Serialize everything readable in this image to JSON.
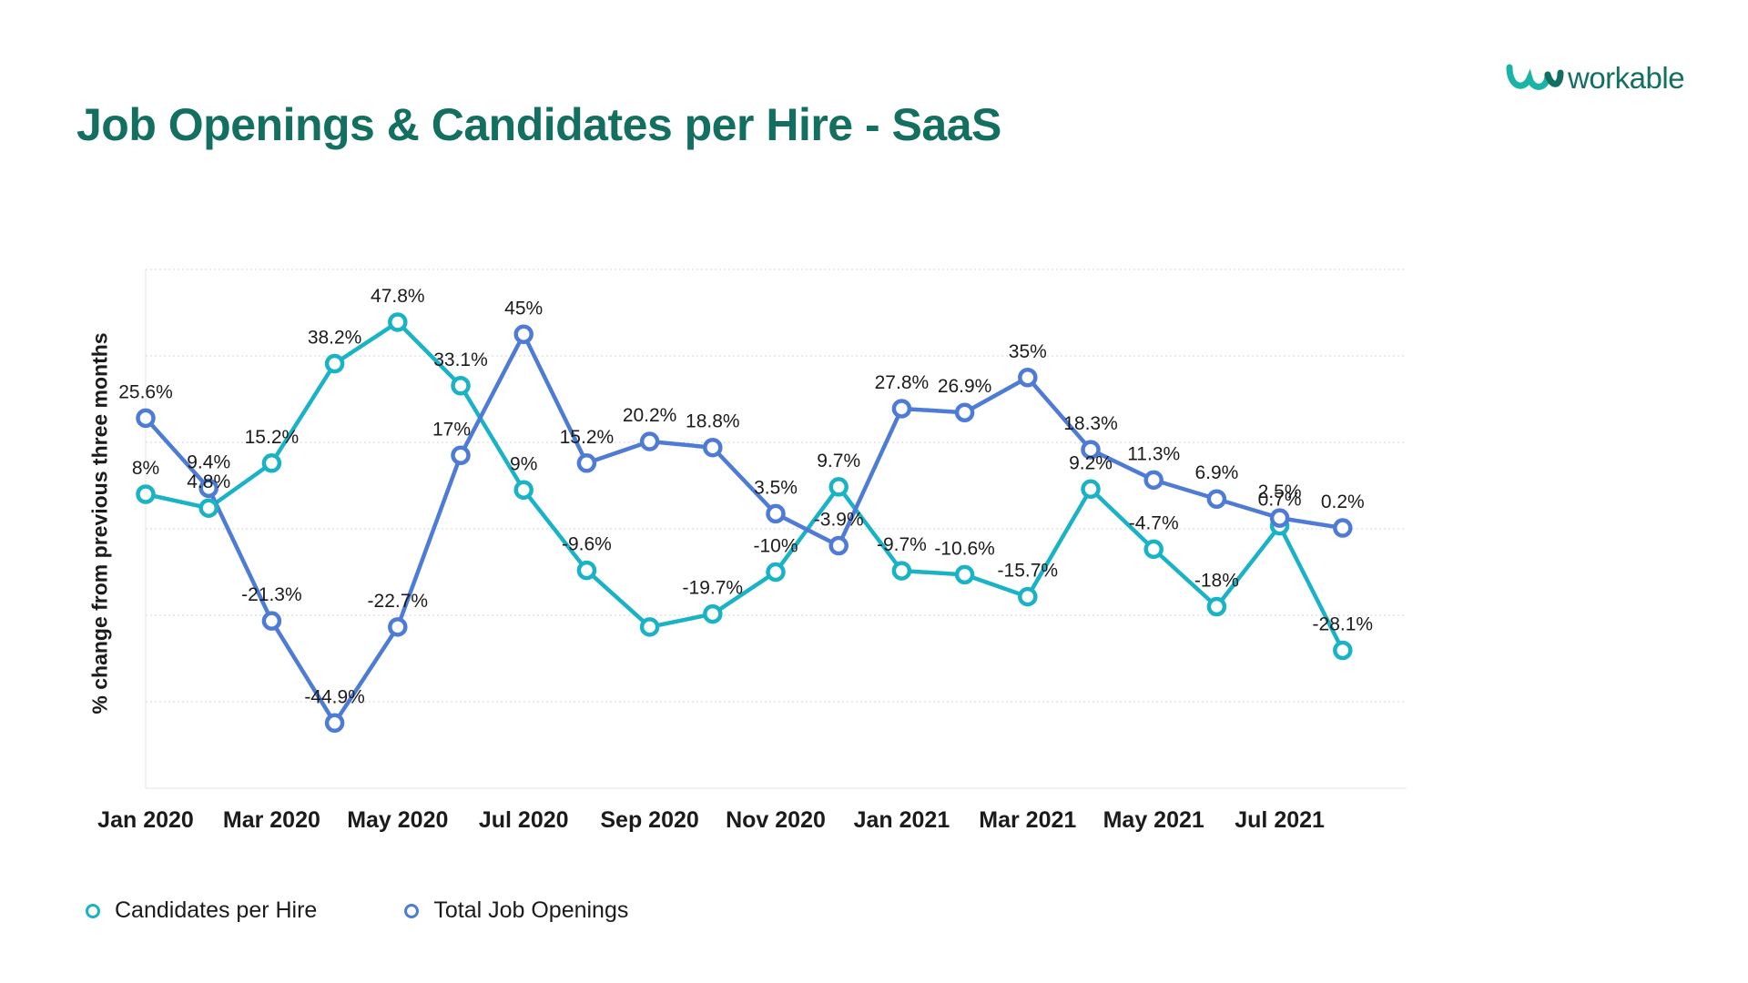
{
  "header": {
    "title": "Job Openings & Candidates per Hire - SaaS",
    "logo_text": "workable",
    "brand_color": "#136f5f"
  },
  "chart_data": {
    "type": "line",
    "title": "Job Openings & Candidates per Hire - SaaS",
    "xlabel": "",
    "ylabel": "% change from previous three months",
    "x": [
      "Jan 2020",
      "Feb 2020",
      "Mar 2020",
      "Apr 2020",
      "May 2020",
      "Jun 2020",
      "Jul 2020",
      "Aug 2020",
      "Sep 2020",
      "Oct 2020",
      "Nov 2020",
      "Dec 2020",
      "Jan 2021",
      "Feb 2021",
      "Mar 2021",
      "Apr 2021",
      "May 2021",
      "Jun 2021",
      "Jul 2021",
      "Aug 2021"
    ],
    "x_tick_labels": [
      "Jan 2020",
      "Mar 2020",
      "May 2020",
      "Jul 2020",
      "Sep 2020",
      "Nov 2020",
      "Jan 2021",
      "Mar 2021",
      "May 2021",
      "Jul 2021"
    ],
    "ylim": [
      -60,
      60
    ],
    "grid": true,
    "legend_position": "bottom-left",
    "series": [
      {
        "name": "Candidates per Hire",
        "color": "#1ab3c6",
        "values": [
          8,
          4.8,
          15.2,
          38.2,
          47.8,
          33.1,
          9,
          -9.6,
          -22.7,
          -19.7,
          -10,
          9.7,
          -9.7,
          -10.6,
          -15.7,
          9.2,
          -4.7,
          -18,
          0.7,
          -28.1
        ],
        "labels": [
          "8%",
          "4.8%",
          "15.2%",
          "38.2%",
          "47.8%",
          "33.1%",
          "9%",
          "-9.6%",
          "",
          "-19.7%",
          "-10%",
          "9.7%",
          "-9.7%",
          "-10.6%",
          "-15.7%",
          "9.2%",
          "-4.7%",
          "-18%",
          "0.7%",
          "-28.1%"
        ]
      },
      {
        "name": "Total Job Openings",
        "color": "#4d7bd6",
        "values": [
          25.6,
          9.4,
          -21.3,
          -44.9,
          -22.7,
          17,
          45,
          15.2,
          20.2,
          18.8,
          3.5,
          -3.9,
          27.8,
          26.9,
          35,
          18.3,
          11.3,
          6.9,
          2.5,
          0.2
        ],
        "labels": [
          "25.6%",
          "9.4%",
          "-21.3%",
          "-44.9%",
          "-22.7%",
          "17%",
          "45%",
          "15.2%",
          "20.2%",
          "18.8%",
          "3.5%",
          "-3.9%",
          "27.8%",
          "26.9%",
          "35%",
          "18.3%",
          "11.3%",
          "6.9%",
          "2.5%",
          "0.2%"
        ]
      }
    ]
  }
}
